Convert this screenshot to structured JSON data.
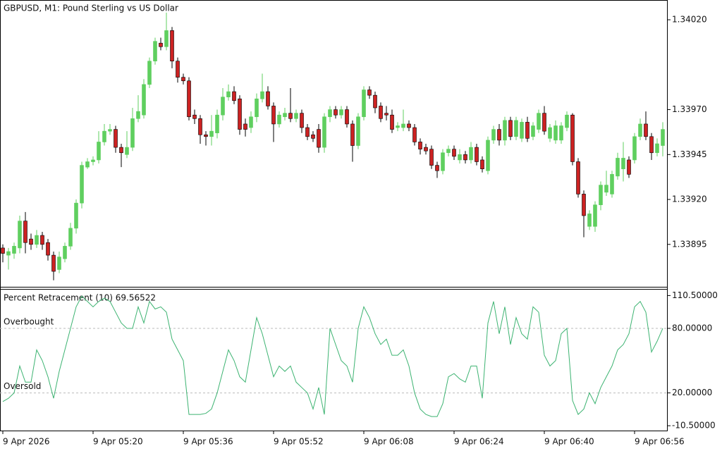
{
  "chart_data": [
    {
      "type": "candlestick",
      "title": "GBPUSD, M1:  Pound Sterling vs US Dollar",
      "up_color": "#5fcf5f",
      "down_color": "#cc2222",
      "ylim": [
        1.33871,
        1.34031
      ],
      "yticks": [
        {
          "value": 1.3402,
          "label": "1.34020"
        },
        {
          "value": 1.3397,
          "label": "1.33970"
        },
        {
          "value": 1.33945,
          "label": "1.33945"
        },
        {
          "value": 1.3392,
          "label": "1.33920"
        },
        {
          "value": 1.33895,
          "label": "1.33895"
        }
      ],
      "categories": [
        "9 Apr 2026",
        null,
        null,
        null,
        null,
        null,
        null,
        null,
        null,
        null,
        null,
        null,
        null,
        null,
        null,
        null,
        "9 Apr 05:20",
        null,
        null,
        null,
        null,
        null,
        null,
        null,
        null,
        null,
        null,
        null,
        null,
        null,
        null,
        null,
        "9 Apr 05:36",
        null,
        null,
        null,
        null,
        null,
        null,
        null,
        null,
        null,
        null,
        null,
        null,
        null,
        null,
        null,
        "9 Apr 05:52",
        null,
        null,
        null,
        null,
        null,
        null,
        null,
        null,
        null,
        null,
        null,
        null,
        null,
        null,
        null,
        "9 Apr 06:08",
        null,
        null,
        null,
        null,
        null,
        null,
        null,
        null,
        null,
        null,
        null,
        null,
        null,
        null,
        null,
        "9 Apr 06:24",
        null,
        null,
        null,
        null,
        null,
        null,
        null,
        null,
        null,
        null,
        null,
        null,
        null,
        null,
        null,
        "9 Apr 06:40",
        null,
        null,
        null,
        null,
        null,
        null,
        null,
        null,
        null,
        null,
        null,
        null,
        null,
        null,
        null,
        "9 Apr 06:56",
        null,
        null,
        null,
        null,
        null
      ],
      "open": [
        1.33893,
        1.33889,
        1.3389,
        1.33893,
        1.33908,
        1.33898,
        1.33895,
        1.339,
        1.33896,
        1.33889,
        1.33881,
        1.33887,
        1.33894,
        1.33904,
        1.33918,
        1.33938,
        1.33941,
        1.33942,
        1.33952,
        1.33958,
        1.33959,
        1.33949,
        1.33945,
        1.33949,
        1.33965,
        1.33967,
        1.33984,
        1.33997,
        1.34007,
        1.34005,
        1.34014,
        1.33997,
        1.33988,
        1.33986,
        1.33967,
        1.33965,
        1.33956,
        1.33955,
        1.33957,
        1.33967,
        1.33977,
        1.3398,
        1.33976,
        1.33962,
        1.3396,
        1.33966,
        1.33976,
        1.3398,
        1.33972,
        1.33962,
        1.33966,
        1.33968,
        1.33965,
        1.33968,
        1.3396,
        1.33956,
        1.33959,
        1.33949,
        1.33966,
        1.3397,
        1.33967,
        1.3397,
        1.33962,
        1.3395,
        1.33966,
        1.33981,
        1.33978,
        1.33972,
        1.33968,
        1.33967,
        1.3396,
        1.3396,
        1.33962,
        1.3396,
        1.33952,
        1.33949,
        1.33948,
        1.33939,
        1.33936,
        1.33946,
        1.33948,
        1.33942,
        1.33945,
        1.33942,
        1.33949,
        1.33942,
        1.33936,
        1.33953,
        1.33959,
        1.33953,
        1.33964,
        1.33955,
        1.33954,
        1.33963,
        1.33955,
        1.33959,
        1.33968,
        1.33954,
        1.33953,
        1.33953,
        1.3396,
        1.33967,
        1.33941,
        1.33923,
        1.33905,
        1.33905,
        1.33917,
        1.33924,
        1.33923,
        1.33933,
        1.33937,
        1.33942,
        1.33942,
        1.33955,
        1.33962,
        1.33955,
        1.33946,
        1.3395
      ],
      "high": [
        1.33895,
        1.33893,
        1.33896,
        1.33911,
        1.33913,
        1.33901,
        1.33903,
        1.33902,
        1.33898,
        1.33891,
        1.33891,
        1.33896,
        1.33907,
        1.3392,
        1.33941,
        1.33943,
        1.33944,
        1.33958,
        1.33962,
        1.33962,
        1.33961,
        1.33951,
        1.33958,
        1.33971,
        1.33978,
        1.33987,
        1.33999,
        1.3401,
        1.3401,
        1.34024,
        1.34016,
        1.33999,
        1.3399,
        1.33988,
        1.3397,
        1.33967,
        1.33958,
        1.33967,
        1.3397,
        1.33982,
        1.33984,
        1.33983,
        1.33978,
        1.33965,
        1.33969,
        1.33979,
        1.3399,
        1.33983,
        1.33974,
        1.33969,
        1.33971,
        1.33982,
        1.3397,
        1.3397,
        1.33962,
        1.33958,
        1.33962,
        1.33968,
        1.33972,
        1.33972,
        1.33972,
        1.33972,
        1.33964,
        1.33968,
        1.33983,
        1.33983,
        1.3398,
        1.33974,
        1.33972,
        1.3397,
        1.33963,
        1.3397,
        1.33964,
        1.33962,
        1.33954,
        1.33951,
        1.3395,
        1.33941,
        1.33948,
        1.3395,
        1.3395,
        1.33948,
        1.33947,
        1.33952,
        1.33951,
        1.33944,
        1.33955,
        1.33961,
        1.33962,
        1.33966,
        1.33966,
        1.33966,
        1.33965,
        1.33966,
        1.33963,
        1.3397,
        1.33972,
        1.33962,
        1.33964,
        1.33963,
        1.33969,
        1.33968,
        1.33943,
        1.33925,
        1.33914,
        1.33919,
        1.3393,
        1.33936,
        1.33936,
        1.33946,
        1.33952,
        1.33944,
        1.33957,
        1.33965,
        1.33969,
        1.33957,
        1.33954,
        1.33963
      ],
      "low": [
        1.33885,
        1.33881,
        1.33887,
        1.3389,
        1.3389,
        1.33892,
        1.33893,
        1.33892,
        1.33886,
        1.33875,
        1.33879,
        1.33885,
        1.33892,
        1.33901,
        1.33915,
        1.33937,
        1.33939,
        1.3394,
        1.3395,
        1.33956,
        1.33946,
        1.33938,
        1.33943,
        1.33947,
        1.33963,
        1.33965,
        1.33982,
        1.33995,
        1.34003,
        1.34003,
        1.33993,
        1.33985,
        1.33984,
        1.33964,
        1.33962,
        1.33951,
        1.3395,
        1.3395,
        1.33954,
        1.33964,
        1.33975,
        1.33973,
        1.33956,
        1.33955,
        1.33957,
        1.33963,
        1.33974,
        1.3397,
        1.33952,
        1.3396,
        1.33964,
        1.33963,
        1.33963,
        1.33957,
        1.33953,
        1.33952,
        1.33946,
        1.33946,
        1.33963,
        1.33965,
        1.33965,
        1.3396,
        1.33941,
        1.33948,
        1.33964,
        1.33976,
        1.33968,
        1.33963,
        1.33964,
        1.33957,
        1.33958,
        1.33958,
        1.33958,
        1.3395,
        1.33945,
        1.33945,
        1.33937,
        1.33932,
        1.33934,
        1.33944,
        1.33942,
        1.3394,
        1.3394,
        1.3394,
        1.33939,
        1.33935,
        1.33934,
        1.33951,
        1.3395,
        1.3395,
        1.33953,
        1.33953,
        1.33952,
        1.33952,
        1.33953,
        1.33957,
        1.33956,
        1.33952,
        1.33951,
        1.33951,
        1.33958,
        1.33939,
        1.33921,
        1.33899,
        1.33903,
        1.33902,
        1.33914,
        1.33922,
        1.33921,
        1.33931,
        1.3393,
        1.33932,
        1.3394,
        1.33953,
        1.33953,
        1.33942,
        1.33944,
        1.33944
      ],
      "close": [
        1.3389,
        1.33891,
        1.33894,
        1.33908,
        1.33896,
        1.33895,
        1.339,
        1.33895,
        1.33889,
        1.3388,
        1.33888,
        1.33894,
        1.33904,
        1.33918,
        1.33939,
        1.33941,
        1.33942,
        1.33952,
        1.33958,
        1.33959,
        1.33949,
        1.33946,
        1.33949,
        1.33965,
        1.33969,
        1.33984,
        1.33997,
        1.34008,
        1.34005,
        1.34014,
        1.33997,
        1.33988,
        1.33986,
        1.33966,
        1.33965,
        1.33956,
        1.33955,
        1.33958,
        1.33967,
        1.33977,
        1.3398,
        1.33975,
        1.33959,
        1.33959,
        1.33966,
        1.33976,
        1.3398,
        1.33972,
        1.33962,
        1.33967,
        1.33968,
        1.33965,
        1.33968,
        1.3396,
        1.33955,
        1.33954,
        1.33949,
        1.33966,
        1.3397,
        1.33967,
        1.3397,
        1.33962,
        1.3395,
        1.33966,
        1.33981,
        1.33978,
        1.33971,
        1.33965,
        1.33967,
        1.33959,
        1.33961,
        1.33962,
        1.3396,
        1.33952,
        1.33948,
        1.33947,
        1.33939,
        1.33936,
        1.33946,
        1.33948,
        1.33944,
        1.33945,
        1.33942,
        1.33949,
        1.33941,
        1.33937,
        1.33953,
        1.33959,
        1.33953,
        1.33964,
        1.33955,
        1.33964,
        1.33963,
        1.33954,
        1.33961,
        1.33968,
        1.33958,
        1.3396,
        1.33961,
        1.33961,
        1.33967,
        1.33941,
        1.33923,
        1.33911,
        1.33912,
        1.33917,
        1.33928,
        1.33928,
        1.33934,
        1.33943,
        1.33943,
        1.33934,
        1.33955,
        1.33962,
        1.33955,
        1.33946,
        1.33951,
        1.33959
      ]
    },
    {
      "type": "line",
      "title": "Percent Retracement (10) 69.56522",
      "color": "#3cb371",
      "ylim": [
        -15,
        116
      ],
      "yticks": [
        {
          "value": 110.5,
          "label": "110.50000"
        },
        {
          "value": 80,
          "label": "80.00000"
        },
        {
          "value": 20,
          "label": "20.00000"
        },
        {
          "value": -10.5,
          "label": "-10.50000"
        }
      ],
      "levels": [
        {
          "value": 80,
          "label": "Overbought"
        },
        {
          "value": 20,
          "label": "Oversold"
        }
      ],
      "values": [
        12,
        15,
        20,
        45,
        30,
        30,
        60,
        50,
        35,
        15,
        40,
        60,
        80,
        100,
        110,
        105,
        100,
        105,
        108,
        105,
        95,
        85,
        80,
        80,
        100,
        85,
        105,
        98,
        100,
        95,
        70,
        60,
        50,
        0,
        0,
        0,
        1,
        5,
        20,
        40,
        60,
        50,
        35,
        30,
        60,
        90,
        75,
        55,
        35,
        45,
        40,
        45,
        30,
        25,
        20,
        5,
        25,
        0,
        80,
        65,
        50,
        45,
        30,
        80,
        100,
        90,
        75,
        65,
        70,
        55,
        55,
        60,
        45,
        20,
        5,
        0,
        -2,
        -2,
        10,
        35,
        38,
        33,
        30,
        45,
        45,
        15,
        85,
        105,
        75,
        100,
        65,
        90,
        75,
        70,
        100,
        95,
        55,
        45,
        50,
        75,
        80,
        13,
        0,
        5,
        20,
        10,
        25,
        35,
        45,
        60,
        65,
        75,
        100,
        105,
        95,
        58,
        68,
        80
      ]
    }
  ]
}
